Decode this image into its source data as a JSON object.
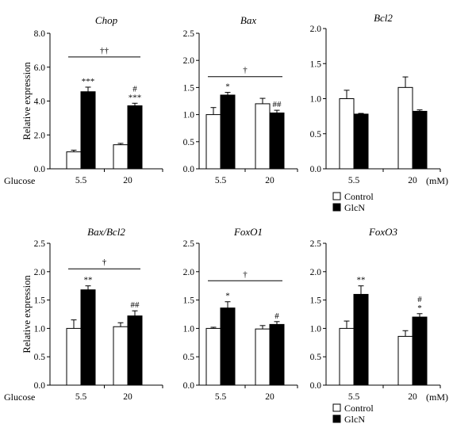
{
  "figure": {
    "x_axis_label": "Glucose",
    "x_unit_label": "(mM)",
    "legend": [
      {
        "name": "Control",
        "color": "#ffffff"
      },
      {
        "name": "GlcN",
        "color": "#000000"
      }
    ]
  },
  "chart_data": [
    {
      "type": "bar",
      "title": "Chop",
      "ylabel": "Relative expression",
      "ylim": [
        0,
        8
      ],
      "yticks": [
        "0.0",
        "2.0",
        "4.0",
        "6.0",
        "8.0"
      ],
      "categories": [
        "5.5",
        "20"
      ],
      "series": [
        {
          "name": "Control",
          "values": [
            1.0,
            1.42
          ],
          "errors": [
            0.1,
            0.08
          ]
        },
        {
          "name": "GlcN",
          "values": [
            4.55,
            3.72
          ],
          "errors": [
            0.27,
            0.15
          ]
        }
      ],
      "bar_labels": [
        [
          "",
          "***"
        ],
        [
          "",
          "#\n***"
        ]
      ],
      "bracket_label": "††",
      "bracket_y": 6.6
    },
    {
      "type": "bar",
      "title": "Bax",
      "ylabel": "",
      "ylim": [
        0,
        2.5
      ],
      "yticks": [
        "0.0",
        "0.5",
        "1.0",
        "1.5",
        "2.0",
        "2.5"
      ],
      "categories": [
        "5.5",
        "20"
      ],
      "series": [
        {
          "name": "Control",
          "values": [
            1.0,
            1.2
          ],
          "errors": [
            0.13,
            0.1
          ]
        },
        {
          "name": "GlcN",
          "values": [
            1.36,
            1.03
          ],
          "errors": [
            0.05,
            0.05
          ]
        }
      ],
      "bar_labels": [
        [
          "",
          "*"
        ],
        [
          "",
          "##"
        ]
      ],
      "bracket_label": "†",
      "bracket_y": 1.7
    },
    {
      "type": "bar",
      "title": "Bcl2",
      "ylabel": "",
      "ylim": [
        0,
        2.0
      ],
      "yticks": [
        "0.0",
        "0.5",
        "1.0",
        "1.5",
        "2.0"
      ],
      "categories": [
        "5.5",
        "20"
      ],
      "series": [
        {
          "name": "Control",
          "values": [
            1.0,
            1.16
          ],
          "errors": [
            0.12,
            0.15
          ]
        },
        {
          "name": "GlcN",
          "values": [
            0.78,
            0.82
          ],
          "errors": [
            0.01,
            0.02
          ]
        }
      ],
      "bar_labels": [
        [
          "",
          ""
        ],
        [
          "",
          ""
        ]
      ],
      "bracket_label": "",
      "bracket_y": 0
    },
    {
      "type": "bar",
      "title": "Bax/Bcl2",
      "ylabel": "Relative expression",
      "ylim": [
        0,
        2.5
      ],
      "yticks": [
        "0.0",
        "0.5",
        "1.0",
        "1.5",
        "2.0",
        "2.5"
      ],
      "categories": [
        "5.5",
        "20"
      ],
      "series": [
        {
          "name": "Control",
          "values": [
            1.0,
            1.03
          ],
          "errors": [
            0.15,
            0.07
          ]
        },
        {
          "name": "GlcN",
          "values": [
            1.68,
            1.22
          ],
          "errors": [
            0.07,
            0.09
          ]
        }
      ],
      "bar_labels": [
        [
          "",
          "**"
        ],
        [
          "",
          "##"
        ]
      ],
      "bracket_label": "†",
      "bracket_y": 2.05
    },
    {
      "type": "bar",
      "title": "FoxO1",
      "ylabel": "",
      "ylim": [
        0,
        2.5
      ],
      "yticks": [
        "0.0",
        "0.5",
        "1.0",
        "1.5",
        "2.0",
        "2.5"
      ],
      "categories": [
        "5.5",
        "20"
      ],
      "series": [
        {
          "name": "Control",
          "values": [
            1.0,
            0.99
          ],
          "errors": [
            0.02,
            0.06
          ]
        },
        {
          "name": "GlcN",
          "values": [
            1.36,
            1.07
          ],
          "errors": [
            0.11,
            0.05
          ]
        }
      ],
      "bar_labels": [
        [
          "",
          "*"
        ],
        [
          "",
          "#"
        ]
      ],
      "bracket_label": "†",
      "bracket_y": 1.84
    },
    {
      "type": "bar",
      "title": "FoxO3",
      "ylabel": "",
      "ylim": [
        0,
        2.5
      ],
      "yticks": [
        "0.0",
        "0.5",
        "1.0",
        "1.5",
        "2.0",
        "2.5"
      ],
      "categories": [
        "5.5",
        "20"
      ],
      "series": [
        {
          "name": "Control",
          "values": [
            1.0,
            0.86
          ],
          "errors": [
            0.13,
            0.1
          ]
        },
        {
          "name": "GlcN",
          "values": [
            1.6,
            1.2
          ],
          "errors": [
            0.15,
            0.06
          ]
        }
      ],
      "bar_labels": [
        [
          "",
          "**"
        ],
        [
          "",
          "#\n*"
        ]
      ],
      "bracket_label": "",
      "bracket_y": 0
    }
  ]
}
